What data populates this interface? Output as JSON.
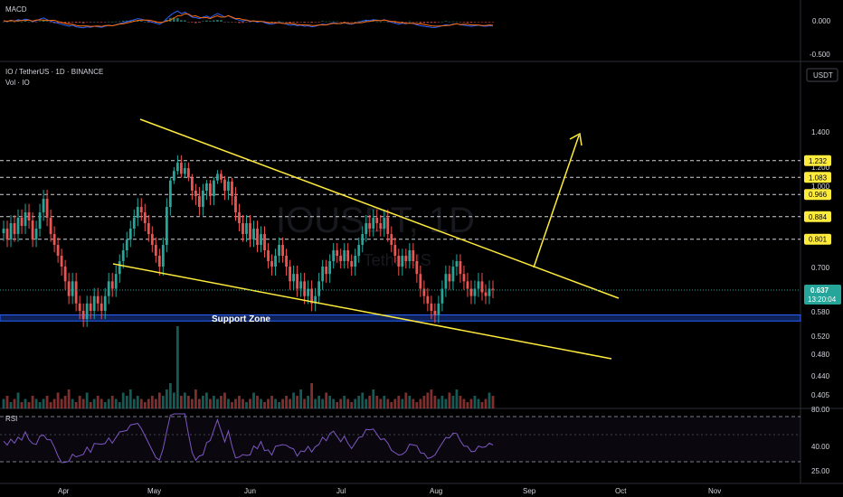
{
  "chart_data": [
    {
      "type": "line",
      "title": "MACD",
      "yticks": [
        "0.000",
        "-0.500"
      ]
    },
    {
      "type": "candlestick",
      "title": "IO / TetherUS · 1D · BINANCE",
      "subtitle": "Vol · IO",
      "currency": "USDT",
      "watermark": "IOUSDT, 1D",
      "watermark_sub": "IO / TetherUS",
      "xlabels": [
        "Apr",
        "May",
        "Jun",
        "Jul",
        "Aug",
        "Sep",
        "Oct",
        "Nov"
      ],
      "yticks": [
        "1.400",
        "1.200",
        "1.000",
        "0.700",
        "0.580",
        "0.520",
        "0.480",
        "0.440",
        "0.405"
      ],
      "levels": [
        1.232,
        1.083,
        0.966,
        0.884,
        0.801
      ],
      "level_labels": [
        "1.232",
        "1.083",
        "0.966",
        "0.884",
        "0.801"
      ],
      "current_price": "0.637",
      "countdown": "13:20:04",
      "support_zone_label": "Support Zone",
      "support_zone": [
        0.555,
        0.57
      ],
      "closes": [
        0.84,
        0.8,
        0.86,
        0.82,
        0.88,
        0.85,
        0.9,
        0.87,
        0.8,
        0.84,
        0.9,
        0.95,
        0.88,
        0.82,
        0.78,
        0.74,
        0.7,
        0.66,
        0.62,
        0.66,
        0.6,
        0.58,
        0.56,
        0.6,
        0.58,
        0.62,
        0.6,
        0.58,
        0.62,
        0.66,
        0.64,
        0.68,
        0.72,
        0.76,
        0.8,
        0.84,
        0.88,
        0.92,
        0.9,
        0.86,
        0.82,
        0.78,
        0.74,
        0.7,
        0.78,
        0.92,
        1.05,
        1.15,
        1.22,
        1.12,
        1.18,
        1.08,
        0.98,
        0.96,
        0.92,
        0.98,
        1.02,
        0.96,
        1.05,
        1.12,
        1.06,
        0.98,
        1.04,
        0.96,
        0.9,
        0.86,
        0.82,
        0.86,
        0.8,
        0.84,
        0.78,
        0.82,
        0.76,
        0.72,
        0.7,
        0.74,
        0.78,
        0.74,
        0.7,
        0.66,
        0.68,
        0.64,
        0.66,
        0.62,
        0.64,
        0.6,
        0.62,
        0.66,
        0.7,
        0.68,
        0.72,
        0.76,
        0.74,
        0.72,
        0.76,
        0.72,
        0.7,
        0.74,
        0.78,
        0.82,
        0.86,
        0.84,
        0.88,
        0.86,
        0.84,
        0.88,
        0.82,
        0.78,
        0.74,
        0.7,
        0.74,
        0.72,
        0.76,
        0.72,
        0.68,
        0.64,
        0.62,
        0.6,
        0.58,
        0.57,
        0.6,
        0.64,
        0.68,
        0.66,
        0.7,
        0.72,
        0.68,
        0.66,
        0.64,
        0.62,
        0.64,
        0.66,
        0.63,
        0.62,
        0.64,
        0.637
      ],
      "volumes": [
        3,
        4,
        2,
        3,
        5,
        2,
        3,
        2,
        4,
        3,
        2,
        3,
        4,
        2,
        3,
        5,
        3,
        4,
        6,
        3,
        2,
        4,
        3,
        5,
        2,
        3,
        4,
        3,
        2,
        3,
        4,
        3,
        2,
        5,
        4,
        6,
        3,
        4,
        3,
        2,
        3,
        4,
        3,
        5,
        4,
        6,
        8,
        5,
        26,
        4,
        5,
        4,
        3,
        6,
        3,
        4,
        5,
        3,
        4,
        3,
        4,
        5,
        3,
        2,
        3,
        4,
        3,
        2,
        3,
        5,
        4,
        3,
        2,
        3,
        4,
        3,
        2,
        3,
        4,
        3,
        5,
        4,
        6,
        3,
        4,
        8,
        3,
        4,
        3,
        5,
        4,
        3,
        2,
        3,
        4,
        3,
        2,
        3,
        4,
        5,
        3,
        4,
        6,
        4,
        3,
        4,
        3,
        2,
        3,
        4,
        3,
        5,
        4,
        3,
        2,
        3,
        4,
        5,
        6,
        4,
        3,
        4,
        3,
        5,
        4,
        6,
        4,
        3,
        2,
        3,
        4,
        3,
        2,
        3,
        5,
        4
      ]
    },
    {
      "type": "line",
      "title": "RSI",
      "yticks": [
        "80.00",
        "40.00",
        "25.00"
      ]
    }
  ]
}
